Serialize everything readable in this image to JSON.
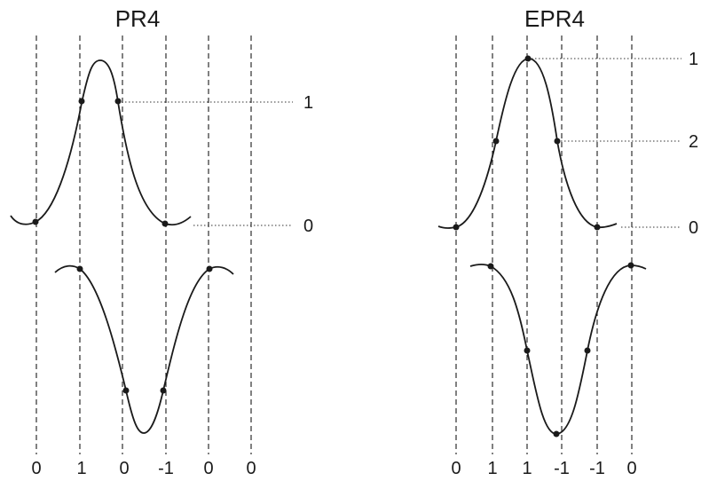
{
  "pr4": {
    "title": "PR4",
    "level_labels": [
      "1",
      "0"
    ],
    "bottom_labels": [
      "0",
      "1",
      "0",
      "-1",
      "0",
      "0"
    ]
  },
  "epr4": {
    "title": "EPR4",
    "level_labels": [
      "1",
      "2",
      "0"
    ],
    "bottom_labels": [
      "0",
      "1",
      "1",
      "-1",
      "-1",
      "0"
    ]
  }
}
